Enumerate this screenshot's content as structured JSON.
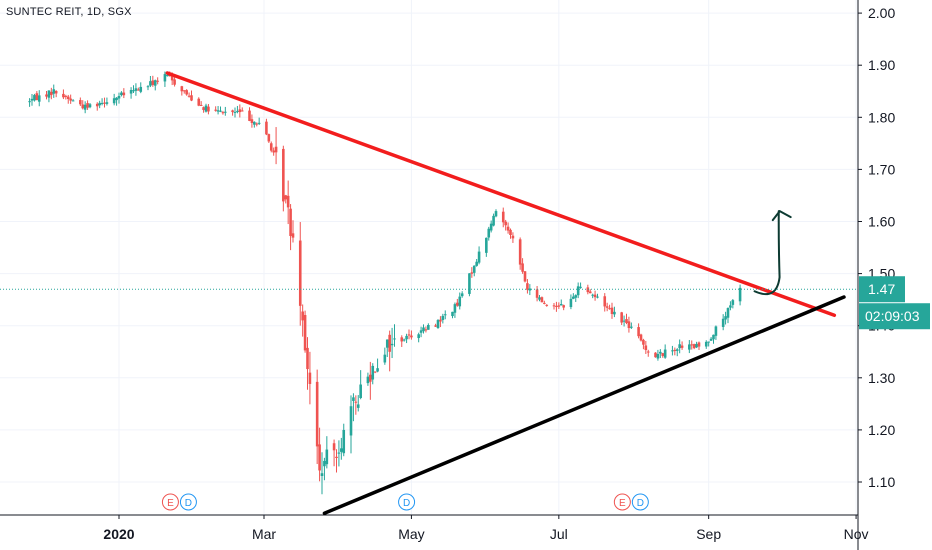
{
  "symbol_label": "SUNTEC REIT, 1D, SGX",
  "price_label": "1.47",
  "countdown_label": "02:09:03",
  "colors": {
    "up": "#26a69a",
    "down": "#ef5350",
    "resistance": "#f21d1d",
    "support": "#000000",
    "arrow": "#0d3b32",
    "price_box": "#26a69a"
  },
  "chart_data": {
    "type": "candlestick",
    "title": "SUNTEC REIT, 1D, SGX",
    "y_ticks": [
      "2.00",
      "1.90",
      "1.80",
      "1.70",
      "1.60",
      "1.50",
      "1.40",
      "1.30",
      "1.20",
      "1.10"
    ],
    "x_ticks": [
      "2020",
      "Mar",
      "May",
      "Jul",
      "Sep",
      "Nov"
    ],
    "ylim": [
      1.04,
      2.02
    ],
    "last_price": 1.47,
    "grid": true,
    "series": [
      {
        "name": "price",
        "anchors": [
          [
            "2019-11-23",
            1.83
          ],
          [
            "2019-12-05",
            1.85
          ],
          [
            "2019-12-18",
            1.82
          ],
          [
            "2020-01-01",
            1.84
          ],
          [
            "2020-01-12",
            1.86
          ],
          [
            "2020-01-21",
            1.88
          ],
          [
            "2020-01-30",
            1.84
          ],
          [
            "2020-02-08",
            1.81
          ],
          [
            "2020-02-20",
            1.81
          ],
          [
            "2020-03-01",
            1.78
          ],
          [
            "2020-03-07",
            1.7
          ],
          [
            "2020-03-14",
            1.55
          ],
          [
            "2020-03-20",
            1.28
          ],
          [
            "2020-03-24",
            1.12
          ],
          [
            "2020-04-02",
            1.18
          ],
          [
            "2020-04-10",
            1.28
          ],
          [
            "2020-04-20",
            1.36
          ],
          [
            "2020-04-30",
            1.38
          ],
          [
            "2020-05-10",
            1.4
          ],
          [
            "2020-05-20",
            1.44
          ],
          [
            "2020-05-31",
            1.56
          ],
          [
            "2020-06-05",
            1.62
          ],
          [
            "2020-06-11",
            1.58
          ],
          [
            "2020-06-18",
            1.47
          ],
          [
            "2020-06-26",
            1.44
          ],
          [
            "2020-07-05",
            1.44
          ],
          [
            "2020-07-10",
            1.48
          ],
          [
            "2020-07-20",
            1.44
          ],
          [
            "2020-07-30",
            1.4
          ],
          [
            "2020-08-09",
            1.34
          ],
          [
            "2020-08-20",
            1.36
          ],
          [
            "2020-08-30",
            1.36
          ],
          [
            "2020-09-08",
            1.42
          ],
          [
            "2020-09-14",
            1.47
          ]
        ]
      }
    ],
    "trendlines": [
      {
        "name": "resistance",
        "from": [
          "2020-01-21",
          1.885
        ],
        "to": [
          "2020-10-23",
          1.42
        ]
      },
      {
        "name": "support",
        "from": [
          "2020-03-26",
          1.04
        ],
        "to": [
          "2020-10-27",
          1.455
        ]
      }
    ],
    "markers": [
      {
        "date": "2020-01-26",
        "labels": [
          "E",
          "D"
        ]
      },
      {
        "date": "2020-04-29",
        "labels": [
          "D"
        ]
      },
      {
        "date": "2020-07-31",
        "labels": [
          "E",
          "D"
        ]
      }
    ],
    "projection": {
      "from": [
        "2020-09-20",
        1.47
      ],
      "to": [
        "2020-09-30",
        1.62
      ]
    }
  }
}
